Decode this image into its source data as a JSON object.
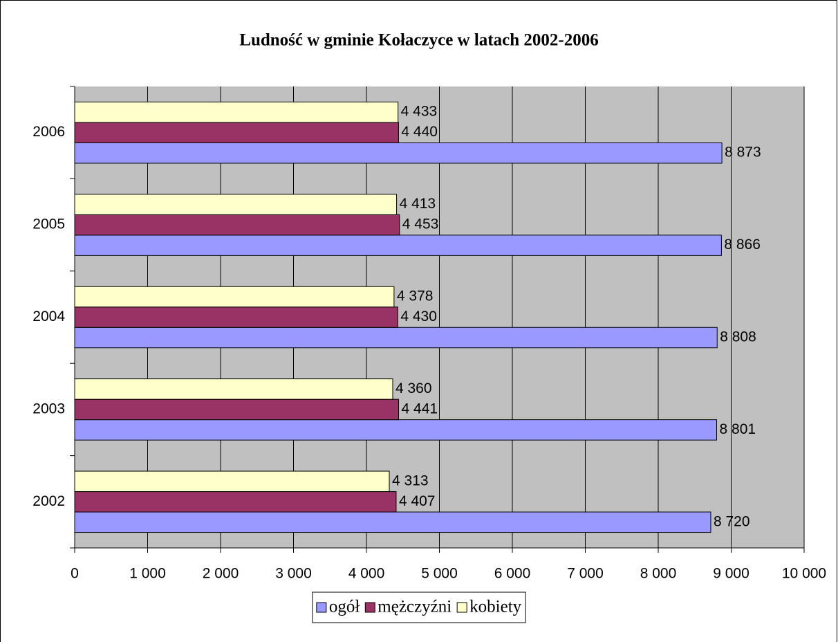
{
  "chart_data": {
    "type": "bar",
    "orientation": "horizontal",
    "title": "Ludność w gminie Kołaczyce w latach 2002-2006",
    "categories": [
      "2002",
      "2003",
      "2004",
      "2005",
      "2006"
    ],
    "series": [
      {
        "name": "ogół",
        "color": "#9999ff",
        "values": [
          8720,
          8801,
          8808,
          8866,
          8873
        ],
        "value_labels": [
          "8 720",
          "8 801",
          "8 808",
          "8 866",
          "8 873"
        ]
      },
      {
        "name": "mężczyźni",
        "color": "#993366",
        "values": [
          4407,
          4441,
          4430,
          4453,
          4440
        ],
        "value_labels": [
          "4 407",
          "4 441",
          "4 430",
          "4 453",
          "4 440"
        ]
      },
      {
        "name": "kobiety",
        "color": "#ffffcc",
        "values": [
          4313,
          4360,
          4378,
          4413,
          4433
        ],
        "value_labels": [
          "4 313",
          "4 360",
          "4 378",
          "4 413",
          "4 433"
        ]
      }
    ],
    "xlim": [
      0,
      10000
    ],
    "xticks": [
      0,
      {
        "value": 1000,
        "label": "1 000"
      },
      {
        "value": 2000,
        "label": "2 000"
      },
      {
        "value": 3000,
        "label": "3 000"
      },
      {
        "value": 4000,
        "label": "4 000"
      },
      {
        "value": 5000,
        "label": "5 000"
      },
      {
        "value": 6000,
        "label": "6 000"
      },
      {
        "value": 7000,
        "label": "7 000"
      },
      {
        "value": 8000,
        "label": "8 000"
      },
      {
        "value": 9000,
        "label": "9 000"
      },
      {
        "value": 10000,
        "label": "10 000"
      }
    ],
    "grid": true,
    "legend": "bottom"
  }
}
